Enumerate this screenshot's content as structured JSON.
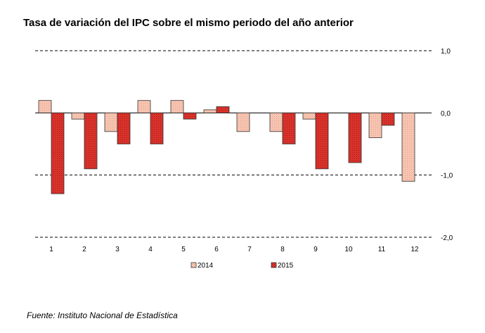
{
  "title": "Tasa de variación del IPC sobre el mismo periodo del año anterior",
  "source": "Fuente: Instituto Nacional de Estadística",
  "chart_data": {
    "type": "bar",
    "categories": [
      "1",
      "2",
      "3",
      "4",
      "5",
      "6",
      "7",
      "8",
      "9",
      "10",
      "11",
      "12"
    ],
    "series": [
      {
        "name": "2014",
        "color": "#f6c4b0",
        "values": [
          0.2,
          -0.1,
          -0.3,
          0.2,
          0.2,
          0.05,
          -0.3,
          -0.3,
          -0.1,
          null,
          -0.4,
          -1.1
        ]
      },
      {
        "name": "2015",
        "color": "#d9322b",
        "values": [
          -1.3,
          -0.9,
          -0.5,
          -0.5,
          -0.1,
          0.1,
          null,
          -0.5,
          -0.9,
          -0.8,
          -0.2,
          null
        ]
      }
    ],
    "yticks": [
      "1,0",
      "0,0",
      "-1,0",
      "-2,0"
    ],
    "ylim": [
      -2.0,
      1.0
    ],
    "grid": true,
    "legend": "bottom-center"
  }
}
